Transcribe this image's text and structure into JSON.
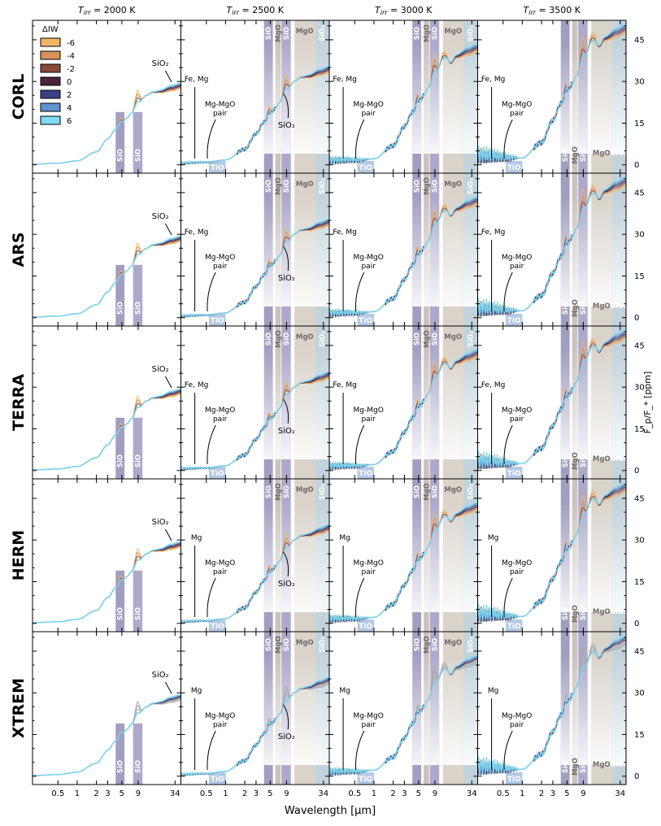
{
  "chart_data": {
    "type": "line",
    "xlabel": "Wavelength [μm]",
    "ylabel": "F_p/F_* [ppm]",
    "xscale": "log",
    "xlim": [
      0.2,
      42
    ],
    "ylim": [
      -3,
      52
    ],
    "xticks": [
      0.5,
      1,
      2,
      3,
      5,
      9,
      34
    ],
    "yticks": [
      0,
      15,
      30,
      45
    ],
    "x_tick_labels": [
      "0.5",
      "1",
      "2",
      "3",
      "5",
      "9",
      "34"
    ],
    "y_tick_labels": [
      "0",
      "15",
      "30",
      "45"
    ],
    "columns": [
      {
        "label_prefix": "T",
        "label_sub": "irr",
        "label_value": " = 2000 K",
        "t_irr": 2000,
        "scale": 0.58
      },
      {
        "label_prefix": "T",
        "label_sub": "irr",
        "label_value": " = 2500 K",
        "t_irr": 2500,
        "scale": 0.7
      },
      {
        "label_prefix": "T",
        "label_sub": "irr",
        "label_value": " = 3000 K",
        "t_irr": 3000,
        "scale": 0.86
      },
      {
        "label_prefix": "T",
        "label_sub": "irr",
        "label_value": " = 3500 K",
        "t_irr": 3500,
        "scale": 1.0
      }
    ],
    "rows": [
      "CORL",
      "ARS",
      "TERRA",
      "HERM",
      "XTREM"
    ],
    "legend": {
      "title": "ΔIW",
      "placement": "top-left",
      "entries": [
        {
          "label": "-6",
          "color": "#f2b766"
        },
        {
          "label": "-4",
          "color": "#d9925a"
        },
        {
          "label": "-2",
          "color": "#8b4a3c"
        },
        {
          "label": "0",
          "color": "#4a2239"
        },
        {
          "label": "2",
          "color": "#3a3f86"
        },
        {
          "label": "4",
          "color": "#5f93cf"
        },
        {
          "label": "6",
          "color": "#7fdcf3"
        }
      ]
    },
    "envelope_reference": {
      "x": [
        0.2,
        0.5,
        1,
        2,
        3,
        4,
        5,
        6,
        7,
        9,
        12,
        15,
        20,
        30,
        42
      ],
      "y": [
        0.4,
        1.0,
        2.5,
        8,
        16,
        22,
        26,
        29,
        32,
        38,
        43,
        45,
        45.5,
        47.5,
        49
      ]
    },
    "bands": [
      {
        "label": "SiO",
        "range": [
          4,
          5.5
        ],
        "color": "#7a75a8",
        "columns": [
          0,
          1,
          2,
          3
        ]
      },
      {
        "label": "SiO",
        "range": [
          7.5,
          10.5
        ],
        "color": "#8985b5",
        "columns": [
          0,
          1,
          2,
          3
        ]
      },
      {
        "label": "MgO",
        "range": [
          6,
          7.3
        ],
        "color": "#b0aaa2",
        "columns": [
          1,
          2,
          3
        ]
      },
      {
        "label": "MgO",
        "range": [
          12,
          25
        ],
        "color": "#c9c0b4",
        "columns": [
          1,
          2,
          3
        ]
      },
      {
        "label": "SiO₂",
        "range": [
          25,
          42
        ],
        "color": "#a8c0cc",
        "columns": [
          1,
          2,
          3
        ]
      },
      {
        "label": "TiO",
        "range": [
          0.55,
          1.0
        ],
        "color": "#a7c0e0",
        "columns": [
          1,
          2,
          3
        ]
      }
    ],
    "annotations": {
      "sio2": "SiO₂",
      "fe_mg": "Fe, Mg",
      "mg": "Mg",
      "mgmgo_line1": "Mg-MgO",
      "mgmgo_line2": "pair",
      "fe_mg_rows": [
        "CORL",
        "ARS",
        "TERRA"
      ],
      "mg_rows": [
        "HERM",
        "XTREM"
      ]
    }
  }
}
